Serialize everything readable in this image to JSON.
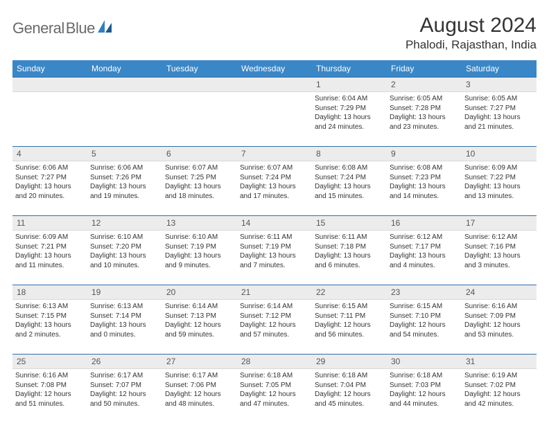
{
  "logo": {
    "textGray": "General",
    "textBlue": "Blue"
  },
  "title": "August 2024",
  "location": "Phalodi, Rajasthan, India",
  "colors": {
    "headerBar": "#3a87c7",
    "rowBg": "#ececec",
    "rowBorderTop": "#2f6ea6",
    "text": "#333333",
    "logoGray": "#6a6a6a",
    "logoBlue": "#2f7ec1"
  },
  "dayNames": [
    "Sunday",
    "Monday",
    "Tuesday",
    "Wednesday",
    "Thursday",
    "Friday",
    "Saturday"
  ],
  "weeks": [
    [
      {
        "n": "",
        "sr": "",
        "ss": "",
        "dl": ""
      },
      {
        "n": "",
        "sr": "",
        "ss": "",
        "dl": ""
      },
      {
        "n": "",
        "sr": "",
        "ss": "",
        "dl": ""
      },
      {
        "n": "",
        "sr": "",
        "ss": "",
        "dl": ""
      },
      {
        "n": "1",
        "sr": "Sunrise: 6:04 AM",
        "ss": "Sunset: 7:29 PM",
        "dl": "Daylight: 13 hours and 24 minutes."
      },
      {
        "n": "2",
        "sr": "Sunrise: 6:05 AM",
        "ss": "Sunset: 7:28 PM",
        "dl": "Daylight: 13 hours and 23 minutes."
      },
      {
        "n": "3",
        "sr": "Sunrise: 6:05 AM",
        "ss": "Sunset: 7:27 PM",
        "dl": "Daylight: 13 hours and 21 minutes."
      }
    ],
    [
      {
        "n": "4",
        "sr": "Sunrise: 6:06 AM",
        "ss": "Sunset: 7:27 PM",
        "dl": "Daylight: 13 hours and 20 minutes."
      },
      {
        "n": "5",
        "sr": "Sunrise: 6:06 AM",
        "ss": "Sunset: 7:26 PM",
        "dl": "Daylight: 13 hours and 19 minutes."
      },
      {
        "n": "6",
        "sr": "Sunrise: 6:07 AM",
        "ss": "Sunset: 7:25 PM",
        "dl": "Daylight: 13 hours and 18 minutes."
      },
      {
        "n": "7",
        "sr": "Sunrise: 6:07 AM",
        "ss": "Sunset: 7:24 PM",
        "dl": "Daylight: 13 hours and 17 minutes."
      },
      {
        "n": "8",
        "sr": "Sunrise: 6:08 AM",
        "ss": "Sunset: 7:24 PM",
        "dl": "Daylight: 13 hours and 15 minutes."
      },
      {
        "n": "9",
        "sr": "Sunrise: 6:08 AM",
        "ss": "Sunset: 7:23 PM",
        "dl": "Daylight: 13 hours and 14 minutes."
      },
      {
        "n": "10",
        "sr": "Sunrise: 6:09 AM",
        "ss": "Sunset: 7:22 PM",
        "dl": "Daylight: 13 hours and 13 minutes."
      }
    ],
    [
      {
        "n": "11",
        "sr": "Sunrise: 6:09 AM",
        "ss": "Sunset: 7:21 PM",
        "dl": "Daylight: 13 hours and 11 minutes."
      },
      {
        "n": "12",
        "sr": "Sunrise: 6:10 AM",
        "ss": "Sunset: 7:20 PM",
        "dl": "Daylight: 13 hours and 10 minutes."
      },
      {
        "n": "13",
        "sr": "Sunrise: 6:10 AM",
        "ss": "Sunset: 7:19 PM",
        "dl": "Daylight: 13 hours and 9 minutes."
      },
      {
        "n": "14",
        "sr": "Sunrise: 6:11 AM",
        "ss": "Sunset: 7:19 PM",
        "dl": "Daylight: 13 hours and 7 minutes."
      },
      {
        "n": "15",
        "sr": "Sunrise: 6:11 AM",
        "ss": "Sunset: 7:18 PM",
        "dl": "Daylight: 13 hours and 6 minutes."
      },
      {
        "n": "16",
        "sr": "Sunrise: 6:12 AM",
        "ss": "Sunset: 7:17 PM",
        "dl": "Daylight: 13 hours and 4 minutes."
      },
      {
        "n": "17",
        "sr": "Sunrise: 6:12 AM",
        "ss": "Sunset: 7:16 PM",
        "dl": "Daylight: 13 hours and 3 minutes."
      }
    ],
    [
      {
        "n": "18",
        "sr": "Sunrise: 6:13 AM",
        "ss": "Sunset: 7:15 PM",
        "dl": "Daylight: 13 hours and 2 minutes."
      },
      {
        "n": "19",
        "sr": "Sunrise: 6:13 AM",
        "ss": "Sunset: 7:14 PM",
        "dl": "Daylight: 13 hours and 0 minutes."
      },
      {
        "n": "20",
        "sr": "Sunrise: 6:14 AM",
        "ss": "Sunset: 7:13 PM",
        "dl": "Daylight: 12 hours and 59 minutes."
      },
      {
        "n": "21",
        "sr": "Sunrise: 6:14 AM",
        "ss": "Sunset: 7:12 PM",
        "dl": "Daylight: 12 hours and 57 minutes."
      },
      {
        "n": "22",
        "sr": "Sunrise: 6:15 AM",
        "ss": "Sunset: 7:11 PM",
        "dl": "Daylight: 12 hours and 56 minutes."
      },
      {
        "n": "23",
        "sr": "Sunrise: 6:15 AM",
        "ss": "Sunset: 7:10 PM",
        "dl": "Daylight: 12 hours and 54 minutes."
      },
      {
        "n": "24",
        "sr": "Sunrise: 6:16 AM",
        "ss": "Sunset: 7:09 PM",
        "dl": "Daylight: 12 hours and 53 minutes."
      }
    ],
    [
      {
        "n": "25",
        "sr": "Sunrise: 6:16 AM",
        "ss": "Sunset: 7:08 PM",
        "dl": "Daylight: 12 hours and 51 minutes."
      },
      {
        "n": "26",
        "sr": "Sunrise: 6:17 AM",
        "ss": "Sunset: 7:07 PM",
        "dl": "Daylight: 12 hours and 50 minutes."
      },
      {
        "n": "27",
        "sr": "Sunrise: 6:17 AM",
        "ss": "Sunset: 7:06 PM",
        "dl": "Daylight: 12 hours and 48 minutes."
      },
      {
        "n": "28",
        "sr": "Sunrise: 6:18 AM",
        "ss": "Sunset: 7:05 PM",
        "dl": "Daylight: 12 hours and 47 minutes."
      },
      {
        "n": "29",
        "sr": "Sunrise: 6:18 AM",
        "ss": "Sunset: 7:04 PM",
        "dl": "Daylight: 12 hours and 45 minutes."
      },
      {
        "n": "30",
        "sr": "Sunrise: 6:18 AM",
        "ss": "Sunset: 7:03 PM",
        "dl": "Daylight: 12 hours and 44 minutes."
      },
      {
        "n": "31",
        "sr": "Sunrise: 6:19 AM",
        "ss": "Sunset: 7:02 PM",
        "dl": "Daylight: 12 hours and 42 minutes."
      }
    ]
  ]
}
